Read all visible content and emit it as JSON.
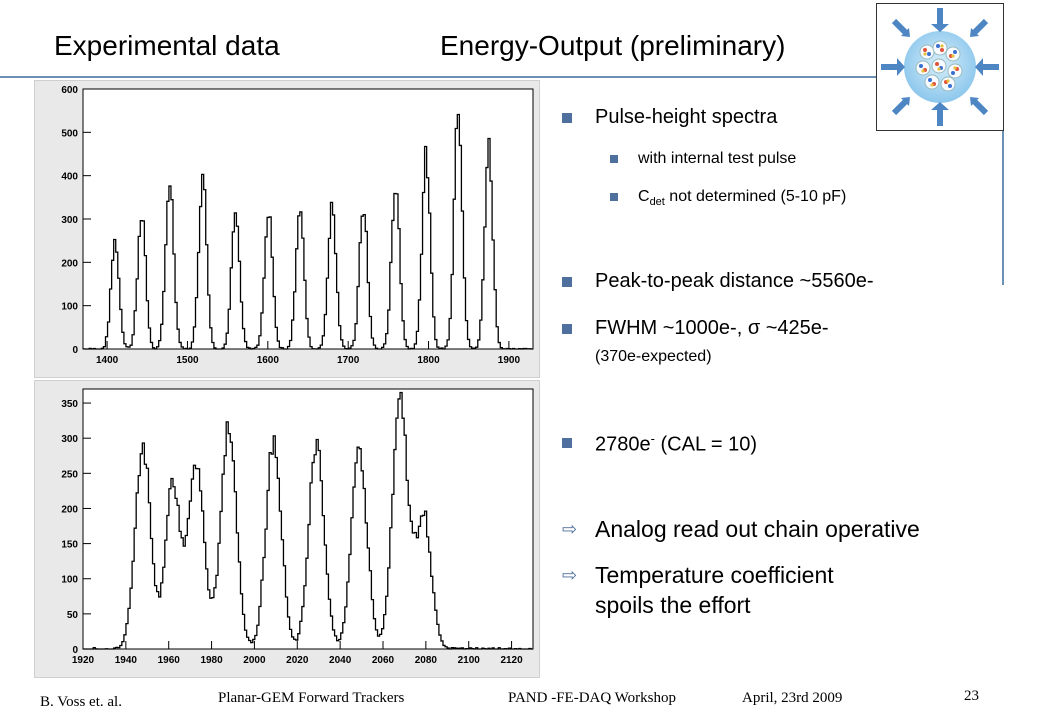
{
  "header": {
    "title_left": "Experimental  data",
    "title_right": "Energy-Output  (preliminary)"
  },
  "bullets": {
    "b1": "Pulse-height spectra",
    "b1_sub1": "with internal test pulse",
    "b1_sub2_pre": "C",
    "b1_sub2_sub": "det",
    "b1_sub2_post": " not determined (5-10 pF)",
    "b2": "Peak-to-peak distance ~5560e-",
    "b3_line1": "FWHM ~1000e-, σ ~425e-",
    "b3_line2": "(370e-expected)",
    "b4_pre": "2780e",
    "b4_sup": "-",
    "b4_post": " (CAL = 10)",
    "a1": "Analog read out chain operative",
    "a2_line1": "Temperature coefficient",
    "a2_line2": "spoils the effort",
    "arrow_glyph": "⇨"
  },
  "footer": {
    "author": "B. Voss et. al.",
    "talk": "Planar-GEM Forward Trackers",
    "event": "PAND -FE-DAQ Workshop",
    "date": "April, 23rd 2009",
    "page": "23"
  },
  "colors": {
    "accent": "#4f6f9f",
    "rule": "#6c8fb5"
  },
  "logo": {
    "icon": "detector-target-logo-icon"
  },
  "chart_data": [
    {
      "type": "line",
      "title": "",
      "xlabel": "",
      "ylabel": "",
      "xlim": [
        1370,
        1930
      ],
      "ylim": [
        0,
        600
      ],
      "xticks": [
        1400,
        1500,
        1600,
        1700,
        1800,
        1900
      ],
      "yticks": [
        0,
        100,
        200,
        300,
        400,
        500,
        600
      ],
      "grid": false,
      "peaks": [
        {
          "x": 1410,
          "y": 250
        },
        {
          "x": 1443,
          "y": 315
        },
        {
          "x": 1478,
          "y": 390
        },
        {
          "x": 1519,
          "y": 400
        },
        {
          "x": 1560,
          "y": 330
        },
        {
          "x": 1601,
          "y": 310
        },
        {
          "x": 1640,
          "y": 330
        },
        {
          "x": 1680,
          "y": 330
        },
        {
          "x": 1719,
          "y": 330
        },
        {
          "x": 1759,
          "y": 385
        },
        {
          "x": 1797,
          "y": 445
        },
        {
          "x": 1837,
          "y": 570
        },
        {
          "x": 1875,
          "y": 470
        }
      ],
      "peak_sigma": 5
    },
    {
      "type": "line",
      "title": "",
      "xlabel": "",
      "ylabel": "",
      "xlim": [
        1920,
        2130
      ],
      "ylim": [
        0,
        370
      ],
      "xticks": [
        1920,
        1940,
        1960,
        1980,
        2000,
        2020,
        2040,
        2060,
        2080,
        2100,
        2120
      ],
      "yticks": [
        0,
        50,
        100,
        150,
        200,
        250,
        300,
        350
      ],
      "grid": false,
      "peaks": [
        {
          "x": 1948,
          "y": 290
        },
        {
          "x": 1962,
          "y": 230
        },
        {
          "x": 1973,
          "y": 260
        },
        {
          "x": 1988,
          "y": 325
        },
        {
          "x": 2009,
          "y": 295
        },
        {
          "x": 2029,
          "y": 290
        },
        {
          "x": 2049,
          "y": 285
        },
        {
          "x": 2068,
          "y": 355
        },
        {
          "x": 2079,
          "y": 190
        }
      ],
      "peak_sigma": 3.6
    }
  ]
}
